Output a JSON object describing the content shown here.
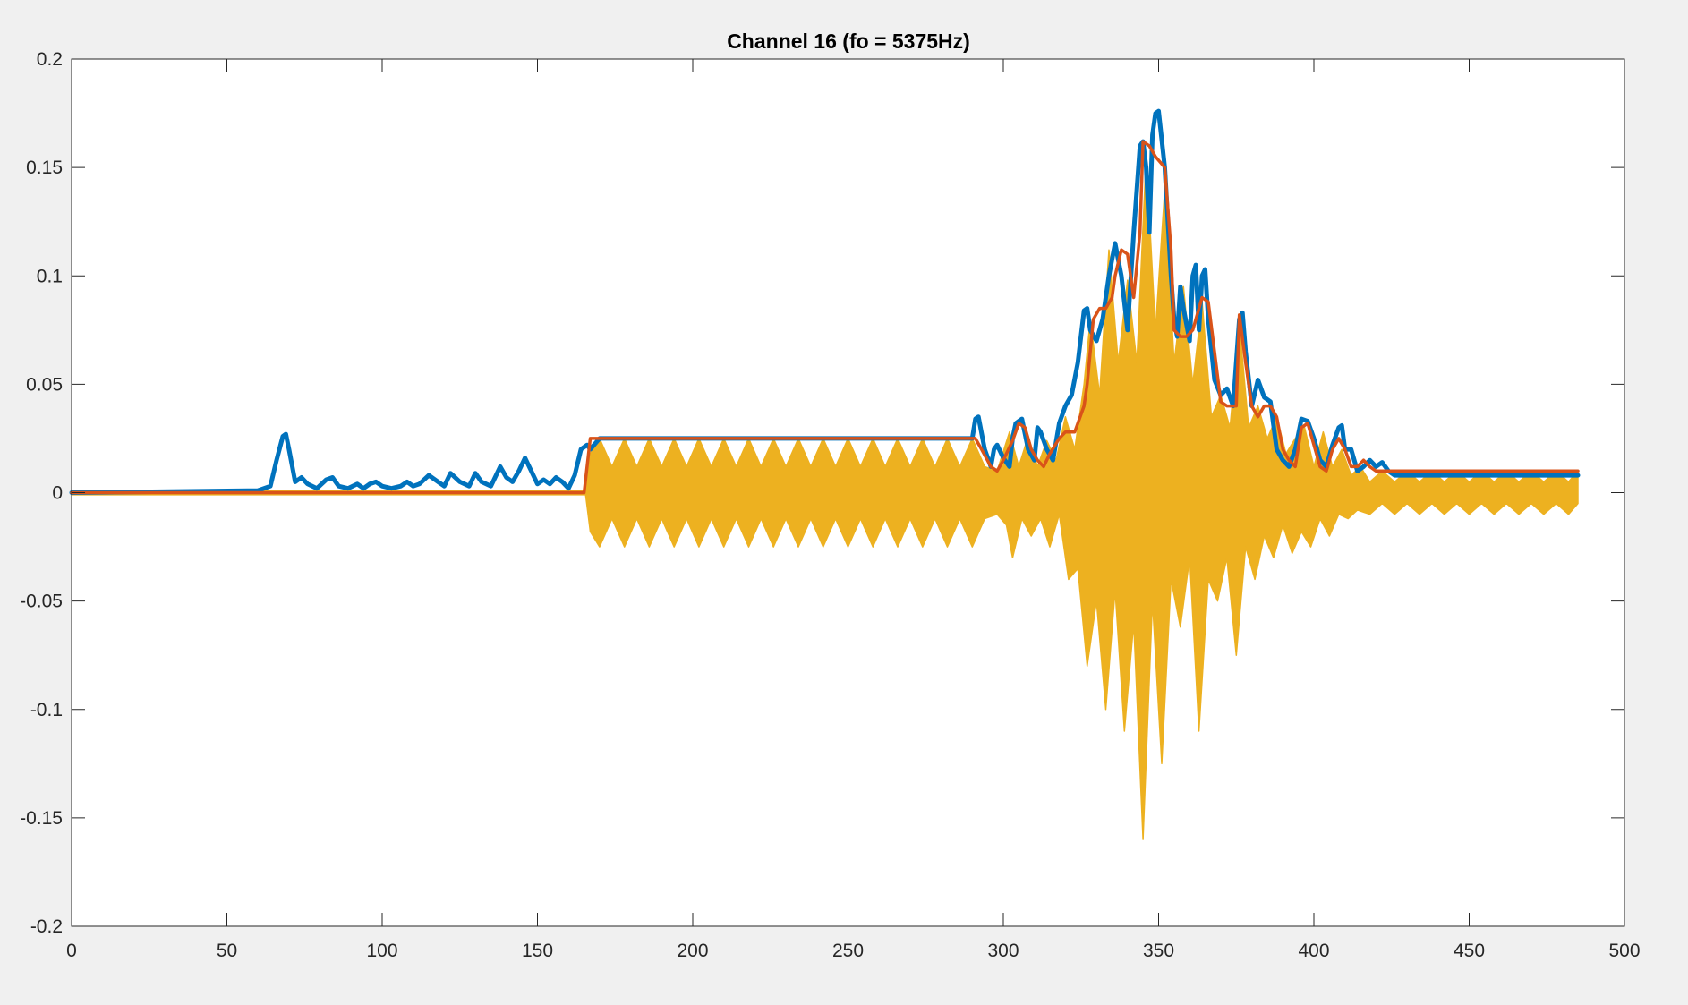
{
  "chart_data": {
    "type": "line",
    "title": "Channel 16 (fo = 5375Hz)",
    "xlabel": "",
    "ylabel": "",
    "xlim": [
      0,
      500
    ],
    "ylim": [
      -0.2,
      0.2
    ],
    "xticks": [
      0,
      50,
      100,
      150,
      200,
      250,
      300,
      350,
      400,
      450,
      500
    ],
    "yticks": [
      -0.2,
      -0.15,
      -0.1,
      -0.05,
      0,
      0.05,
      0.1,
      0.15,
      0.2
    ],
    "xtick_labels": [
      "0",
      "50",
      "100",
      "150",
      "200",
      "250",
      "300",
      "350",
      "400",
      "450",
      "500"
    ],
    "ytick_labels": [
      "-0.2",
      "-0.15",
      "-0.1",
      "-0.05",
      "0",
      "0.05",
      "0.1",
      "0.15",
      "0.2"
    ],
    "grid": false,
    "legend": "none",
    "series": [
      {
        "style": "filled oscillating signal",
        "color": "#EDB120",
        "x_upper": [
          0,
          165,
          165.5,
          167,
          170,
          174,
          178,
          182,
          186,
          190,
          194,
          198,
          202,
          206,
          210,
          214,
          218,
          222,
          226,
          230,
          234,
          238,
          242,
          246,
          250,
          254,
          258,
          262,
          266,
          270,
          274,
          278,
          282,
          286,
          290,
          294,
          298,
          302,
          305,
          308,
          311,
          314,
          317,
          320,
          323,
          326,
          328,
          331,
          334,
          337,
          340,
          343,
          346,
          349,
          352,
          355,
          358,
          361,
          364,
          367,
          370,
          373,
          376,
          379,
          382,
          385,
          388,
          391,
          394,
          397,
          400,
          403,
          406,
          409,
          412,
          415,
          418,
          422,
          426,
          430,
          434,
          438,
          442,
          446,
          450,
          454,
          458,
          462,
          466,
          470,
          474,
          478,
          482,
          485
        ],
        "y_upper": [
          0.001,
          0.001,
          0.001,
          0.018,
          0.025,
          0.012,
          0.025,
          0.012,
          0.025,
          0.012,
          0.025,
          0.012,
          0.025,
          0.012,
          0.025,
          0.012,
          0.025,
          0.012,
          0.025,
          0.012,
          0.025,
          0.012,
          0.025,
          0.012,
          0.025,
          0.012,
          0.025,
          0.012,
          0.025,
          0.012,
          0.025,
          0.012,
          0.025,
          0.012,
          0.025,
          0.012,
          0.01,
          0.028,
          0.012,
          0.026,
          0.012,
          0.024,
          0.015,
          0.035,
          0.02,
          0.05,
          0.08,
          0.045,
          0.112,
          0.06,
          0.098,
          0.06,
          0.155,
          0.075,
          0.14,
          0.06,
          0.095,
          0.05,
          0.088,
          0.035,
          0.045,
          0.03,
          0.078,
          0.03,
          0.04,
          0.025,
          0.035,
          0.018,
          0.025,
          0.03,
          0.012,
          0.028,
          0.012,
          0.02,
          0.008,
          0.012,
          0.005,
          0.01,
          0.005,
          0.01,
          0.005,
          0.01,
          0.005,
          0.01,
          0.005,
          0.01,
          0.005,
          0.01,
          0.005,
          0.01,
          0.005,
          0.01,
          0.005,
          0.01
        ],
        "x_lower": [
          0,
          165,
          165.5,
          167,
          170,
          174,
          178,
          182,
          186,
          190,
          194,
          198,
          202,
          206,
          210,
          214,
          218,
          222,
          226,
          230,
          234,
          238,
          242,
          246,
          250,
          254,
          258,
          262,
          266,
          270,
          274,
          278,
          282,
          286,
          290,
          294,
          298,
          301,
          303,
          306,
          309,
          312,
          315,
          318,
          321,
          324,
          327,
          330,
          333,
          336,
          339,
          342,
          345,
          348,
          351,
          354,
          357,
          360,
          363,
          366,
          369,
          372,
          375,
          378,
          381,
          384,
          387,
          390,
          393,
          396,
          399,
          402,
          405,
          408,
          411,
          414,
          418,
          422,
          426,
          430,
          434,
          438,
          442,
          446,
          450,
          454,
          458,
          462,
          466,
          470,
          474,
          478,
          482,
          485
        ],
        "y_lower": [
          -0.001,
          -0.001,
          -0.001,
          -0.018,
          -0.025,
          -0.012,
          -0.025,
          -0.012,
          -0.025,
          -0.012,
          -0.025,
          -0.012,
          -0.025,
          -0.012,
          -0.025,
          -0.012,
          -0.025,
          -0.012,
          -0.025,
          -0.012,
          -0.025,
          -0.012,
          -0.025,
          -0.012,
          -0.025,
          -0.012,
          -0.025,
          -0.012,
          -0.025,
          -0.012,
          -0.025,
          -0.012,
          -0.025,
          -0.012,
          -0.025,
          -0.012,
          -0.01,
          -0.015,
          -0.03,
          -0.012,
          -0.02,
          -0.012,
          -0.025,
          -0.01,
          -0.04,
          -0.035,
          -0.08,
          -0.05,
          -0.1,
          -0.045,
          -0.11,
          -0.06,
          -0.16,
          -0.05,
          -0.125,
          -0.04,
          -0.062,
          -0.03,
          -0.11,
          -0.04,
          -0.05,
          -0.03,
          -0.075,
          -0.025,
          -0.04,
          -0.02,
          -0.03,
          -0.015,
          -0.028,
          -0.018,
          -0.025,
          -0.012,
          -0.02,
          -0.01,
          -0.012,
          -0.008,
          -0.01,
          -0.005,
          -0.01,
          -0.005,
          -0.01,
          -0.005,
          -0.01,
          -0.005,
          -0.01,
          -0.005,
          -0.01,
          -0.005,
          -0.01,
          -0.005,
          -0.01,
          -0.005,
          -0.01,
          -0.005
        ]
      },
      {
        "style": "thick line",
        "color": "#0072BD",
        "x": [
          0,
          60,
          64,
          66,
          68,
          69,
          70,
          72,
          74,
          76,
          79,
          82,
          84,
          86,
          89,
          92,
          94,
          96,
          98,
          100,
          103,
          106,
          108,
          110,
          112,
          115,
          118,
          120,
          122,
          125,
          128,
          130,
          132,
          135,
          138,
          140,
          142,
          144,
          146,
          148,
          150,
          152,
          154,
          156,
          158,
          160,
          162,
          164,
          166,
          167,
          170,
          175,
          180,
          185,
          190,
          200,
          210,
          220,
          230,
          240,
          250,
          260,
          270,
          280,
          285,
          288,
          290,
          291,
          292,
          294,
          296,
          297,
          298,
          300,
          302,
          303,
          304,
          306,
          308,
          310,
          311,
          312,
          314,
          316,
          318,
          320,
          322,
          324,
          326,
          327,
          328,
          330,
          332,
          334,
          336,
          338,
          340,
          342,
          344,
          345,
          346,
          347,
          348,
          349,
          350,
          352,
          354,
          355,
          356,
          357,
          358,
          360,
          361,
          362,
          363,
          364,
          365,
          366,
          368,
          370,
          372,
          374,
          376,
          377,
          378,
          380,
          382,
          384,
          386,
          388,
          390,
          392,
          394,
          396,
          398,
          400,
          402,
          404,
          406,
          408,
          409,
          410,
          412,
          414,
          416,
          418,
          420,
          422,
          424,
          426,
          428,
          430,
          440,
          450,
          460,
          470,
          480,
          485
        ],
        "y": [
          0,
          0.001,
          0.003,
          0.015,
          0.026,
          0.027,
          0.02,
          0.005,
          0.007,
          0.004,
          0.002,
          0.006,
          0.007,
          0.003,
          0.002,
          0.004,
          0.002,
          0.004,
          0.005,
          0.003,
          0.002,
          0.003,
          0.005,
          0.003,
          0.004,
          0.008,
          0.005,
          0.003,
          0.009,
          0.005,
          0.003,
          0.009,
          0.005,
          0.003,
          0.012,
          0.007,
          0.005,
          0.01,
          0.016,
          0.01,
          0.004,
          0.006,
          0.004,
          0.007,
          0.005,
          0.002,
          0.008,
          0.02,
          0.022,
          0.02,
          0.025,
          0.025,
          0.025,
          0.025,
          0.025,
          0.025,
          0.025,
          0.025,
          0.025,
          0.025,
          0.025,
          0.025,
          0.025,
          0.025,
          0.025,
          0.025,
          0.025,
          0.034,
          0.035,
          0.02,
          0.012,
          0.02,
          0.022,
          0.016,
          0.012,
          0.025,
          0.032,
          0.034,
          0.02,
          0.015,
          0.03,
          0.028,
          0.02,
          0.015,
          0.032,
          0.04,
          0.045,
          0.06,
          0.084,
          0.085,
          0.075,
          0.07,
          0.08,
          0.1,
          0.115,
          0.1,
          0.075,
          0.12,
          0.16,
          0.162,
          0.15,
          0.12,
          0.165,
          0.175,
          0.176,
          0.15,
          0.1,
          0.08,
          0.072,
          0.095,
          0.085,
          0.07,
          0.1,
          0.105,
          0.075,
          0.1,
          0.103,
          0.08,
          0.052,
          0.045,
          0.048,
          0.04,
          0.08,
          0.083,
          0.065,
          0.04,
          0.052,
          0.044,
          0.042,
          0.02,
          0.015,
          0.012,
          0.02,
          0.034,
          0.033,
          0.025,
          0.015,
          0.012,
          0.022,
          0.03,
          0.031,
          0.02,
          0.02,
          0.01,
          0.012,
          0.015,
          0.012,
          0.014,
          0.01,
          0.008,
          0.008,
          0.008,
          0.008,
          0.008,
          0.008,
          0.008,
          0.008,
          0.008
        ]
      },
      {
        "style": "line",
        "color": "#D95319",
        "x": [
          0,
          165,
          167,
          290,
          291,
          293,
          296,
          298,
          300,
          303,
          305,
          307,
          309,
          311,
          313,
          315,
          318,
          320,
          323,
          326,
          327,
          329,
          331,
          333,
          335,
          336,
          338,
          340,
          342,
          344,
          345,
          347,
          349,
          352,
          354,
          355,
          357,
          359,
          361,
          363,
          364,
          366,
          368,
          370,
          372,
          375,
          376,
          378,
          380,
          382,
          384,
          386,
          388,
          390,
          392,
          394,
          396,
          398,
          400,
          402,
          404,
          406,
          408,
          410,
          412,
          414,
          416,
          418,
          420,
          422,
          424,
          426,
          428,
          430,
          440,
          450,
          460,
          470,
          480,
          485
        ],
        "y": [
          0,
          0,
          0.025,
          0.025,
          0.025,
          0.02,
          0.012,
          0.01,
          0.015,
          0.024,
          0.032,
          0.03,
          0.02,
          0.015,
          0.012,
          0.018,
          0.025,
          0.028,
          0.028,
          0.04,
          0.05,
          0.08,
          0.085,
          0.085,
          0.09,
          0.1,
          0.112,
          0.11,
          0.09,
          0.12,
          0.162,
          0.16,
          0.155,
          0.15,
          0.112,
          0.075,
          0.072,
          0.072,
          0.075,
          0.085,
          0.09,
          0.088,
          0.065,
          0.042,
          0.04,
          0.04,
          0.082,
          0.06,
          0.04,
          0.035,
          0.04,
          0.04,
          0.035,
          0.02,
          0.015,
          0.012,
          0.03,
          0.032,
          0.022,
          0.012,
          0.01,
          0.02,
          0.025,
          0.02,
          0.012,
          0.012,
          0.015,
          0.012,
          0.01,
          0.01,
          0.01,
          0.01,
          0.01,
          0.01,
          0.01,
          0.01,
          0.01,
          0.01,
          0.01,
          0.01
        ]
      }
    ]
  }
}
